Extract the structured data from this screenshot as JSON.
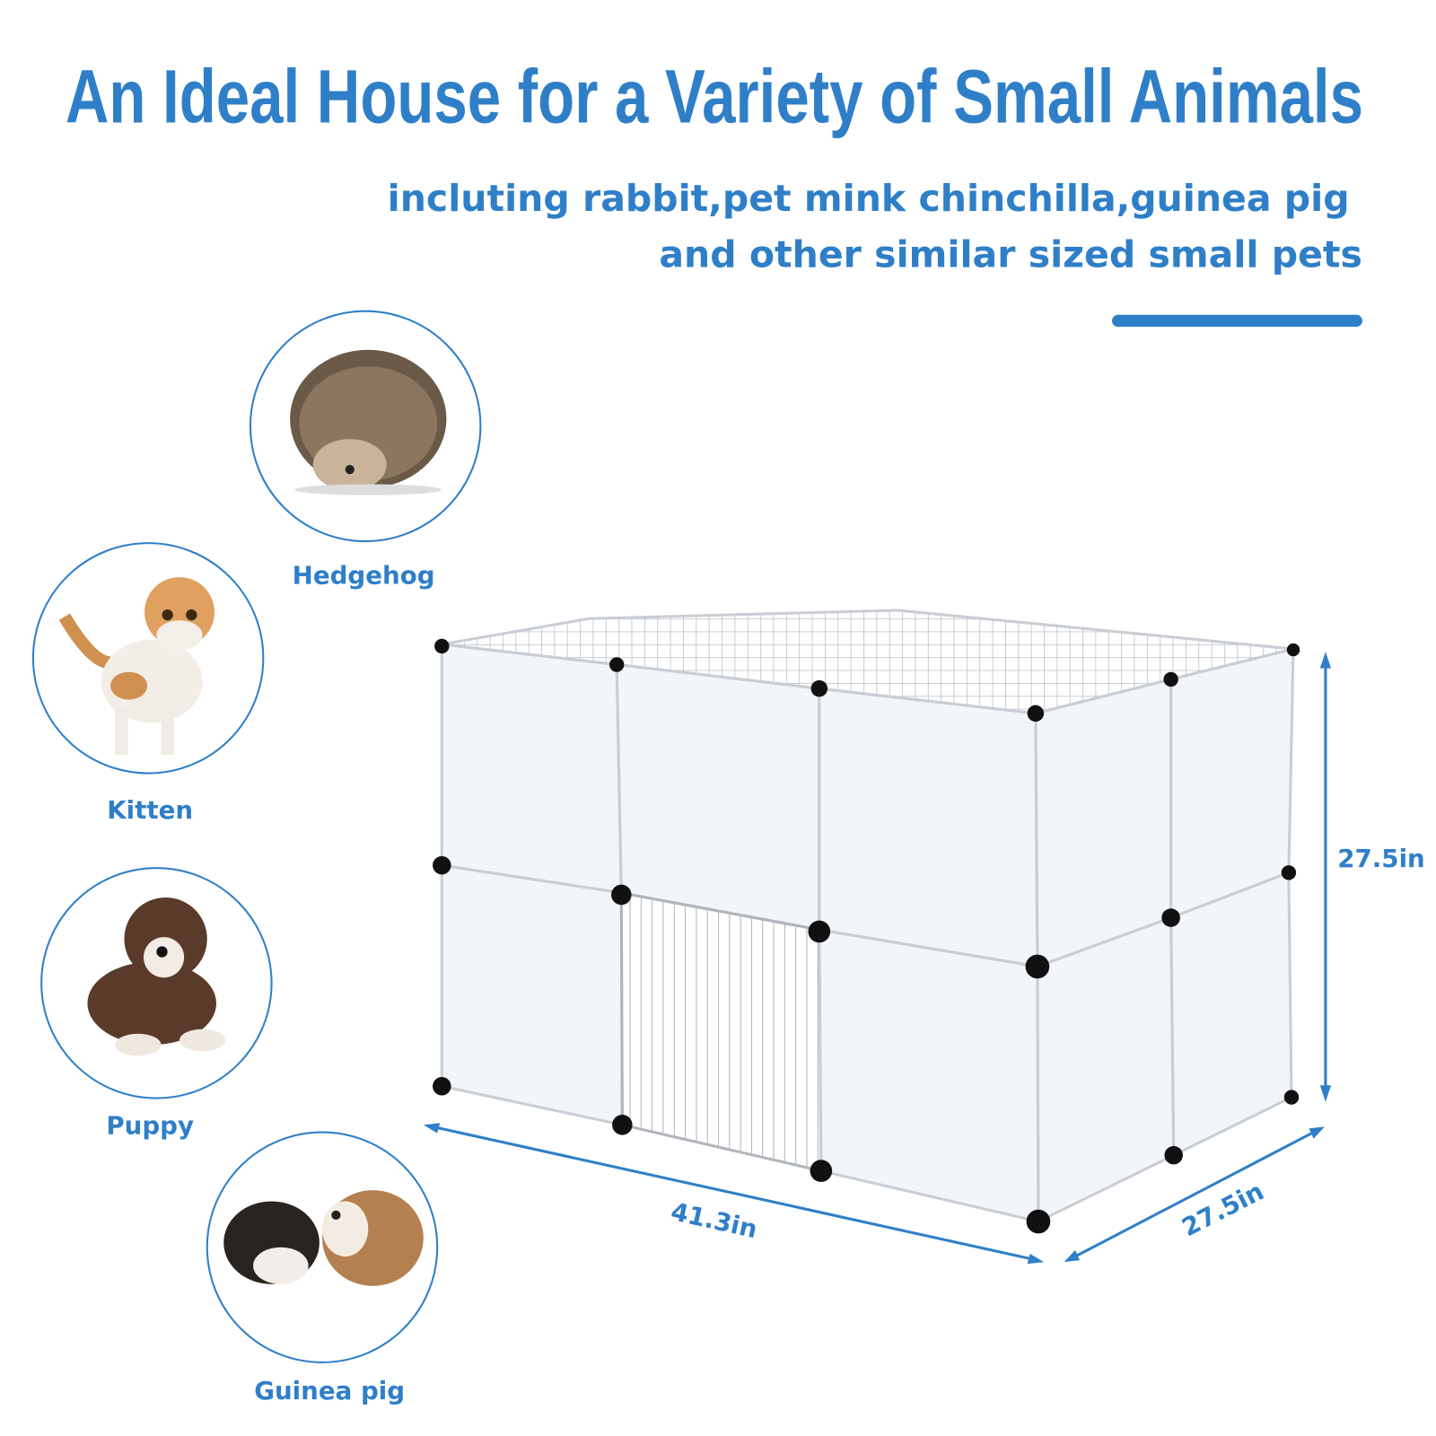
{
  "header": {
    "title": "An Ideal House for a Variety of Small Animals",
    "subtitle_line1": "incluting rabbit,pet mink chinchilla,guinea pig",
    "subtitle_line2": "and other similar sized small pets"
  },
  "animals": [
    {
      "label": "Hedgehog",
      "icon": "hedgehog-photo"
    },
    {
      "label": "Kitten",
      "icon": "kitten-photo"
    },
    {
      "label": "Puppy",
      "icon": "puppy-photo"
    },
    {
      "label": "Guinea pig",
      "icon": "guinea-pig-photo"
    }
  ],
  "dimensions": {
    "height": "27.5in",
    "width": "41.3in",
    "depth": "27.5in"
  },
  "colors": {
    "accent": "#2f7fc8"
  }
}
